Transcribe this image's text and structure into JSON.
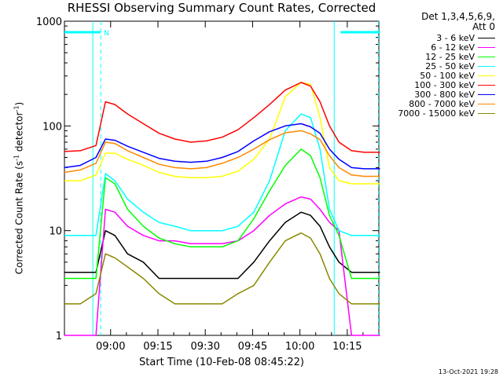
{
  "chart_data": {
    "type": "line",
    "title": "RHESSI Observing Summary Count Rates, Corrected",
    "xlabel": "Start Time (10-Feb-08 08:45:22)",
    "ylabel": "Corrected Count Rate (s",
    "ylabel_sup1": "-1",
    "ylabel_mid": " detector",
    "ylabel_sup2": "-1",
    "ylabel_end": ")",
    "yscale": "log",
    "ylim": [
      1,
      1000
    ],
    "xlim": [
      "08:45:22",
      "10:25:00"
    ],
    "x_ticks": [
      "09:00",
      "09:15",
      "09:30",
      "09:45",
      "10:00",
      "10:15"
    ],
    "y_ticks": [
      "1",
      "10",
      "100",
      "1000"
    ],
    "legend_header": [
      "Det 1,3,4,5,6,9,",
      "Att 0"
    ],
    "timestamp": "13-Oct-2021 19:28",
    "flag_label": "N",
    "x_minutes": [
      0,
      5,
      10,
      13,
      16,
      20,
      25,
      30,
      35,
      40,
      45,
      50,
      55,
      60,
      65,
      70,
      75,
      78,
      81,
      84,
      87,
      91,
      95,
      100
    ],
    "series": [
      {
        "name": "3 - 6 keV",
        "color": "#000000",
        "values": [
          4,
          4,
          4,
          10,
          9,
          6,
          5,
          3.5,
          3.5,
          3.5,
          3.5,
          3.5,
          3.5,
          5,
          8,
          12,
          15,
          14,
          11,
          7,
          5,
          4,
          4,
          4
        ]
      },
      {
        "name": "6 - 12 keV",
        "color": "#ff00ff",
        "values": [
          1,
          1,
          1,
          16,
          15,
          11,
          9,
          8,
          8,
          7.5,
          7.5,
          7.5,
          8,
          10,
          14,
          18,
          21,
          20,
          16,
          12,
          10,
          1,
          1,
          1
        ]
      },
      {
        "name": "12 - 25 keV",
        "color": "#00ff00",
        "values": [
          3.5,
          3.5,
          3.5,
          32,
          28,
          16,
          11,
          8.5,
          7.5,
          7,
          7,
          7,
          8,
          13,
          24,
          42,
          60,
          52,
          32,
          14,
          9,
          3.5,
          3.5,
          3.5
        ]
      },
      {
        "name": "25 - 50 keV",
        "color": "#00ffff",
        "values": [
          9,
          9,
          9,
          35,
          30,
          20,
          15,
          12,
          11,
          10,
          10,
          10,
          11,
          15,
          30,
          90,
          130,
          120,
          60,
          16,
          10,
          9,
          9,
          9
        ]
      },
      {
        "name": "50 - 100 keV",
        "color": "#ffff00",
        "values": [
          30,
          30,
          34,
          55,
          55,
          48,
          42,
          36,
          33,
          32,
          32,
          33,
          37,
          48,
          75,
          190,
          260,
          250,
          120,
          40,
          30,
          28,
          28,
          28
        ]
      },
      {
        "name": "100 - 300 keV",
        "color": "#ff0000",
        "values": [
          57,
          58,
          65,
          170,
          160,
          130,
          105,
          85,
          75,
          70,
          72,
          78,
          92,
          120,
          160,
          220,
          260,
          240,
          170,
          100,
          70,
          58,
          56,
          56
        ]
      },
      {
        "name": "300 - 800 keV",
        "color": "#0000ff",
        "values": [
          40,
          42,
          50,
          75,
          73,
          64,
          56,
          49,
          46,
          45,
          46,
          50,
          57,
          72,
          88,
          100,
          105,
          98,
          85,
          60,
          48,
          40,
          39,
          39
        ]
      },
      {
        "name": "800 - 7000 keV",
        "color": "#ff8800",
        "values": [
          36,
          38,
          44,
          70,
          68,
          58,
          50,
          43,
          40,
          39,
          40,
          44,
          50,
          60,
          74,
          86,
          90,
          84,
          74,
          52,
          40,
          34,
          33,
          33
        ]
      },
      {
        "name": "7000 - 15000 keV",
        "color": "#888800",
        "values": [
          2,
          2,
          2.5,
          6,
          5.5,
          4.5,
          3.5,
          2.5,
          2,
          2,
          2,
          2,
          2.5,
          3,
          5,
          8,
          9.5,
          8.5,
          6,
          3.5,
          2.5,
          2,
          2,
          2
        ]
      }
    ],
    "intervals": [
      {
        "kind": "night",
        "from_min": 0,
        "to_min": 11.5
      },
      {
        "kind": "night",
        "from_min": 87.5,
        "to_min": 100
      }
    ],
    "dashed_x_min": [
      11.5,
      99.5
    ],
    "solid_x_min": [
      9,
      85.5
    ]
  }
}
